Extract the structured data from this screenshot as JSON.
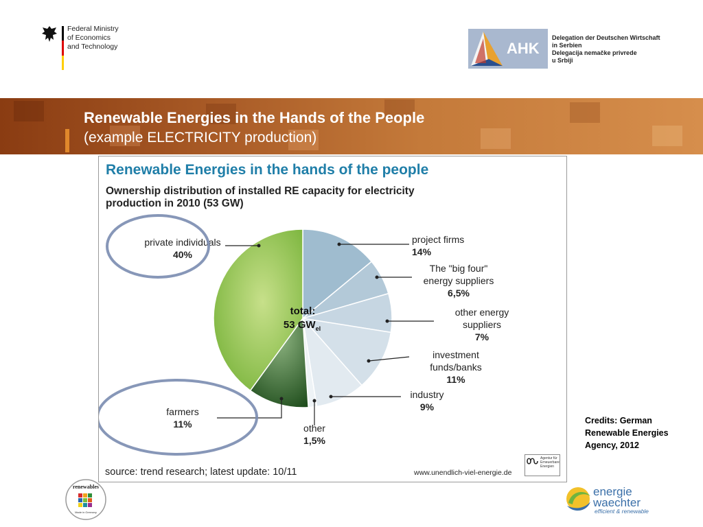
{
  "header": {
    "ministry": "Federal Ministry\nof Economics\nand Technology",
    "ahk_word": "AHK",
    "ahk_text": "Delegation der Deutschen Wirtschaft\nin Serbien\nDelegacija nemačke privrede\nu Srbiji"
  },
  "band": {
    "title": "Renewable Energies in the Hands of the People",
    "subtitle": "(example ELECTRICITY production)"
  },
  "chart_data": {
    "type": "pie",
    "title": "Renewable Energies in the hands of the people",
    "subtitle": "Ownership distribution of installed RE capacity for electricity\nproduction in 2010 (53 GW)",
    "center_label": "total:",
    "center_value": "53 GW",
    "center_sub": "el",
    "slices": [
      {
        "name": "project firms",
        "value_label": "14%",
        "value": 14,
        "color": "#9fbccf"
      },
      {
        "name": "The \"big four\" energy suppliers",
        "value_label": "6,5%",
        "value": 6.5,
        "color": "#b3c9d8"
      },
      {
        "name": "other energy suppliers",
        "value_label": "7%",
        "value": 7,
        "color": "#c6d6e2"
      },
      {
        "name": "investment funds/banks",
        "value_label": "11%",
        "value": 11,
        "color": "#d4e0e9"
      },
      {
        "name": "industry",
        "value_label": "9%",
        "value": 9,
        "color": "#e2eaf0"
      },
      {
        "name": "other",
        "value_label": "1,5%",
        "value": 1.5,
        "color": "#eef3f6"
      },
      {
        "name": "farmers",
        "value_label": "11%",
        "value": 11,
        "color": "#3e7a35"
      },
      {
        "name": "private individuals",
        "value_label": "40%",
        "value": 40,
        "color": "#8cc43e"
      }
    ],
    "source": "source: trend research; latest update: 10/11",
    "website": "www.unendlich-viel-energie.de",
    "agency_logo": "Agentur für\nErneuerbare\nEnergien"
  },
  "credits": "Credits: German Renewable Energies Agency, 2012",
  "footer": {
    "renewables_logo": "renewables",
    "renewables_sub": "Made in Germany",
    "energie": "energie",
    "waechter": "waechter",
    "tagline": "efficient & renewable"
  },
  "colors": {
    "title_blue": "#1f7ea8",
    "band_brown": "#a85a26",
    "highlight_ring": "#7a8cb0"
  }
}
